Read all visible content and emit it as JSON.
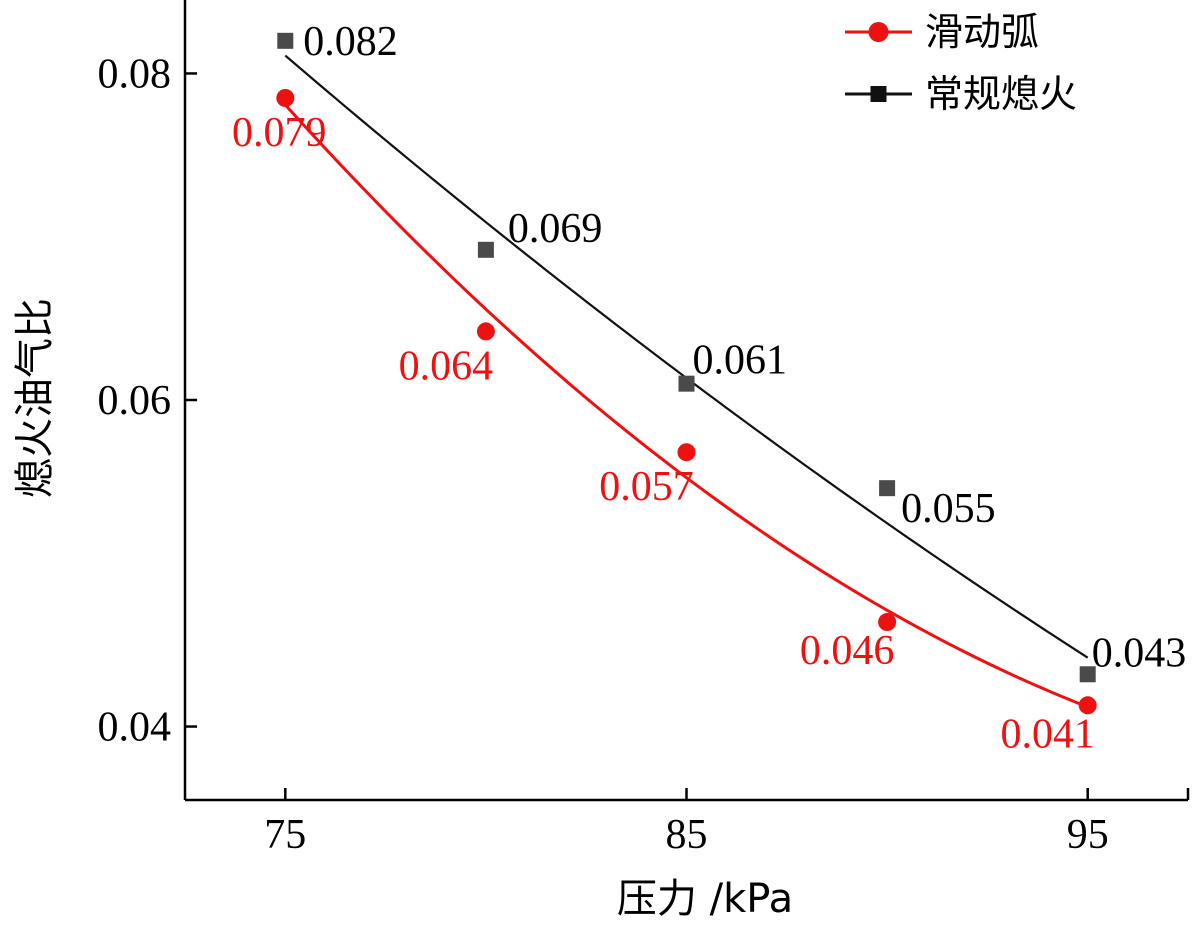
{
  "chart_data": {
    "type": "line",
    "xlabel": "压力 /kPa",
    "ylabel": "熄火油气比",
    "xlim": [
      72.5,
      97.5
    ],
    "ylim": [
      0.0355,
      0.0845
    ],
    "x_ticks": [
      75,
      85,
      95
    ],
    "y_ticks": [
      0.04,
      0.06,
      0.08
    ],
    "x_tick_labels": [
      "75",
      "85",
      "95"
    ],
    "y_tick_labels": [
      "0.04",
      "0.06",
      "0.08"
    ],
    "grid": false,
    "legend_position": "top-right",
    "series": [
      {
        "name": "滑动弧",
        "marker": "circle",
        "color": "#ee1111",
        "x": [
          75,
          80,
          85,
          90,
          95
        ],
        "y": [
          0.0785,
          0.0642,
          0.0568,
          0.0464,
          0.0413
        ],
        "labels": [
          "0.079",
          "0.064",
          "0.057",
          "0.046",
          "0.041"
        ]
      },
      {
        "name": "常规熄火",
        "marker": "square",
        "color": "#111111",
        "x": [
          75,
          80,
          85,
          90,
          95
        ],
        "y": [
          0.082,
          0.0692,
          0.061,
          0.0546,
          0.0432
        ],
        "labels": [
          "0.082",
          "0.069",
          "0.061",
          "0.055",
          "0.043"
        ]
      }
    ]
  }
}
